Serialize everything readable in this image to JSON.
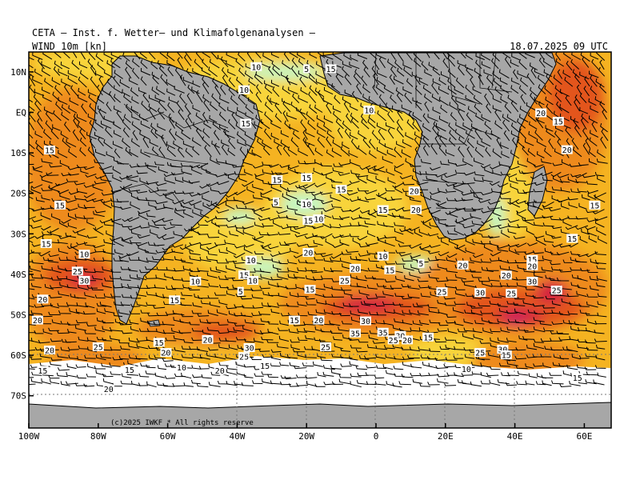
{
  "header": {
    "title": "CETA — Inst. f. Wetter— und Klimafolgenanalysen —",
    "parameter": "WIND 10m [kn]",
    "datetime": "18.07.2025 09 UTC"
  },
  "copyright": "(c)2025 IWKF * All rights reserve",
  "axes": {
    "lat_labels": [
      "10N",
      "EQ",
      "10S",
      "20S",
      "30S",
      "40S",
      "50S",
      "60S",
      "70S"
    ],
    "lon_labels": [
      "100W",
      "80W",
      "60W",
      "40W",
      "20W",
      "0",
      "20E",
      "40E",
      "60E"
    ]
  },
  "colors": {
    "land": "#a7a7a7",
    "ice": "#ffffff",
    "calm": "#c6f6c0",
    "light": "#f8d43a",
    "moderate": "#f5b321",
    "fresh": "#ee8a1f",
    "strong": "#e3541e",
    "gale": "#d6203f",
    "storm": "#c7186a"
  },
  "speed_labels": [
    {
      "text": "10",
      "lon": -34.5,
      "lat": 11.2
    },
    {
      "text": "5",
      "lon": -20,
      "lat": 10.7
    },
    {
      "text": "15",
      "lon": -13,
      "lat": 10.7
    },
    {
      "text": "10",
      "lon": -38,
      "lat": 5.5
    },
    {
      "text": "10",
      "lon": -2,
      "lat": 0.5
    },
    {
      "text": "20",
      "lon": 47.5,
      "lat": -0.2
    },
    {
      "text": "15",
      "lon": -37.5,
      "lat": -2.8
    },
    {
      "text": "15",
      "lon": 52.5,
      "lat": -2.3
    },
    {
      "text": "15",
      "lon": -94,
      "lat": -9.4
    },
    {
      "text": "20",
      "lon": 55,
      "lat": -9.3
    },
    {
      "text": "15",
      "lon": -28.5,
      "lat": -16.7
    },
    {
      "text": "15",
      "lon": -20,
      "lat": -16.2
    },
    {
      "text": "15",
      "lon": -10,
      "lat": -19.1
    },
    {
      "text": "20",
      "lon": 11,
      "lat": -19.5
    },
    {
      "text": "5",
      "lon": -28.8,
      "lat": -22.2
    },
    {
      "text": "10",
      "lon": -20,
      "lat": -22.7
    },
    {
      "text": "15",
      "lon": -91,
      "lat": -23.0
    },
    {
      "text": "15",
      "lon": 2,
      "lat": -24.1
    },
    {
      "text": "20",
      "lon": 11.5,
      "lat": -24.1
    },
    {
      "text": "15",
      "lon": 63,
      "lat": -23.0
    },
    {
      "text": "10",
      "lon": -16.5,
      "lat": -26.4
    },
    {
      "text": "15",
      "lon": -19.5,
      "lat": -26.8
    },
    {
      "text": "15",
      "lon": 56.5,
      "lat": -31.2
    },
    {
      "text": "15",
      "lon": -95,
      "lat": -32.5
    },
    {
      "text": "10",
      "lon": -84,
      "lat": -35.1
    },
    {
      "text": "20",
      "lon": -19.5,
      "lat": -34.7
    },
    {
      "text": "10",
      "lon": 2,
      "lat": -35.6
    },
    {
      "text": "10",
      "lon": -36,
      "lat": -36.6
    },
    {
      "text": "5",
      "lon": 13,
      "lat": -37.4
    },
    {
      "text": "20",
      "lon": 25,
      "lat": -37.8
    },
    {
      "text": "15",
      "lon": 45,
      "lat": -36.4
    },
    {
      "text": "20",
      "lon": 45,
      "lat": -38.0
    },
    {
      "text": "25",
      "lon": -86,
      "lat": -39.3
    },
    {
      "text": "20",
      "lon": -6,
      "lat": -38.6
    },
    {
      "text": "15",
      "lon": 4,
      "lat": -39.0
    },
    {
      "text": "20",
      "lon": 37.5,
      "lat": -40.3
    },
    {
      "text": "15",
      "lon": -38,
      "lat": -40.2
    },
    {
      "text": "10",
      "lon": -35.5,
      "lat": -41.6
    },
    {
      "text": "10",
      "lon": -52,
      "lat": -41.8
    },
    {
      "text": "25",
      "lon": -9,
      "lat": -41.6
    },
    {
      "text": "30",
      "lon": -84,
      "lat": -41.6
    },
    {
      "text": "30",
      "lon": 45,
      "lat": -41.8
    },
    {
      "text": "15",
      "lon": -19,
      "lat": -43.8
    },
    {
      "text": "5",
      "lon": -39,
      "lat": -44.3
    },
    {
      "text": "25",
      "lon": 19,
      "lat": -44.4
    },
    {
      "text": "30",
      "lon": 30,
      "lat": -44.6
    },
    {
      "text": "25",
      "lon": 39,
      "lat": -44.8
    },
    {
      "text": "25",
      "lon": 52,
      "lat": -44.0
    },
    {
      "text": "20",
      "lon": -96,
      "lat": -46.2
    },
    {
      "text": "15",
      "lon": -58,
      "lat": -46.4
    },
    {
      "text": "15",
      "lon": -23.5,
      "lat": -51.4
    },
    {
      "text": "20",
      "lon": -16.5,
      "lat": -51.4
    },
    {
      "text": "30",
      "lon": -3,
      "lat": -51.6
    },
    {
      "text": "20",
      "lon": -97.5,
      "lat": -51.4
    },
    {
      "text": "35",
      "lon": -6,
      "lat": -54.6
    },
    {
      "text": "35",
      "lon": 2,
      "lat": -54.4
    },
    {
      "text": "30",
      "lon": 7,
      "lat": -55.2
    },
    {
      "text": "25",
      "lon": 5,
      "lat": -56.3
    },
    {
      "text": "20",
      "lon": 9,
      "lat": -56.3
    },
    {
      "text": "15",
      "lon": 15,
      "lat": -55.6
    },
    {
      "text": "20",
      "lon": -48.5,
      "lat": -56.2
    },
    {
      "text": "15",
      "lon": -62.5,
      "lat": -56.9
    },
    {
      "text": "25",
      "lon": -80,
      "lat": -58.0
    },
    {
      "text": "25",
      "lon": -14.5,
      "lat": -58.0
    },
    {
      "text": "30",
      "lon": -36.5,
      "lat": -58.2
    },
    {
      "text": "20",
      "lon": -94,
      "lat": -58.8
    },
    {
      "text": "20",
      "lon": -60.5,
      "lat": -59.4
    },
    {
      "text": "25",
      "lon": 30,
      "lat": -59.4
    },
    {
      "text": "30",
      "lon": 36.5,
      "lat": -58.6
    },
    {
      "text": "15",
      "lon": 37.5,
      "lat": -60.0
    },
    {
      "text": "25",
      "lon": -38,
      "lat": -60.4
    },
    {
      "text": "15",
      "lon": -32,
      "lat": -62.6
    },
    {
      "text": "10",
      "lon": -56,
      "lat": -63.0
    },
    {
      "text": "15",
      "lon": -96,
      "lat": -63.8
    },
    {
      "text": "15",
      "lon": -71,
      "lat": -63.6
    },
    {
      "text": "20",
      "lon": -45,
      "lat": -63.8
    },
    {
      "text": "10",
      "lon": 26,
      "lat": -63.4
    },
    {
      "text": "15",
      "lon": 58,
      "lat": -65.6
    },
    {
      "text": "20",
      "lon": -77,
      "lat": -68.4
    }
  ]
}
